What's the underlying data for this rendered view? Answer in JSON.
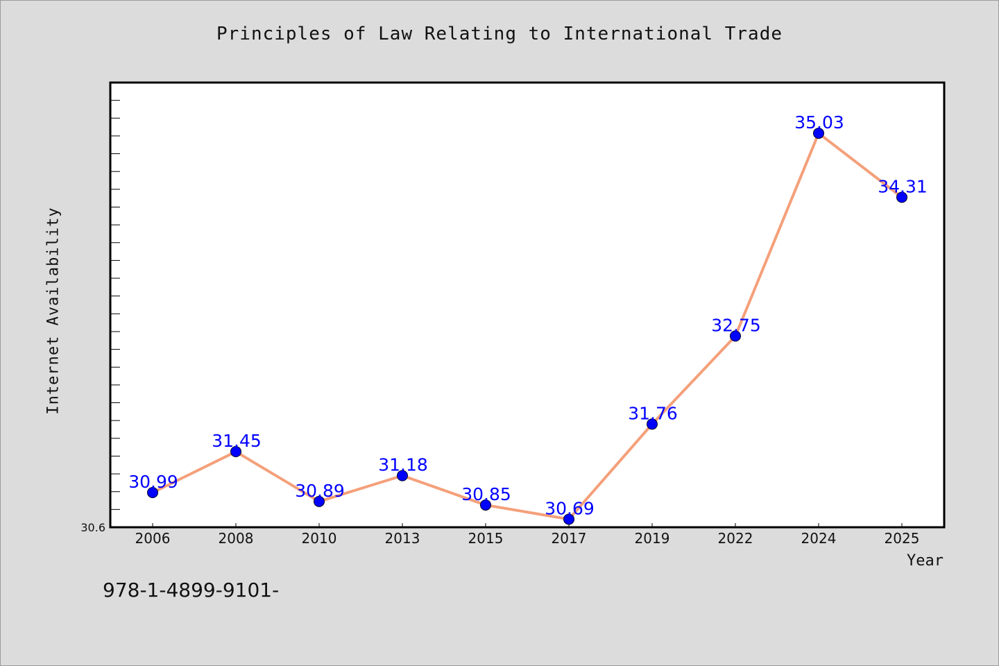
{
  "chart_data": {
    "type": "line",
    "title": "Principles of Law Relating to International Trade",
    "xlabel": "Year",
    "ylabel": "Internet Availability",
    "categories": [
      "2006",
      "2008",
      "2010",
      "2013",
      "2015",
      "2017",
      "2019",
      "2022",
      "2024",
      "2025"
    ],
    "values": [
      30.99,
      31.45,
      30.89,
      31.18,
      30.85,
      30.69,
      31.76,
      32.75,
      35.03,
      34.31
    ],
    "data_labels": [
      "30.99",
      "31.45",
      "30.89",
      "31.18",
      "30.85",
      "30.69",
      "31.76",
      "32.75",
      "35.03",
      "34.31"
    ],
    "ylim": [
      30.6,
      35.6
    ],
    "y_min_label": "30.6",
    "grid": false,
    "line_color": "#f4a07a",
    "marker_color": "#0000ff",
    "label_color": "#0000ff",
    "plot_background": "#ffffff",
    "page_background": "#dcdcdc"
  },
  "footer": {
    "code": "978-1-4899-9101-"
  }
}
